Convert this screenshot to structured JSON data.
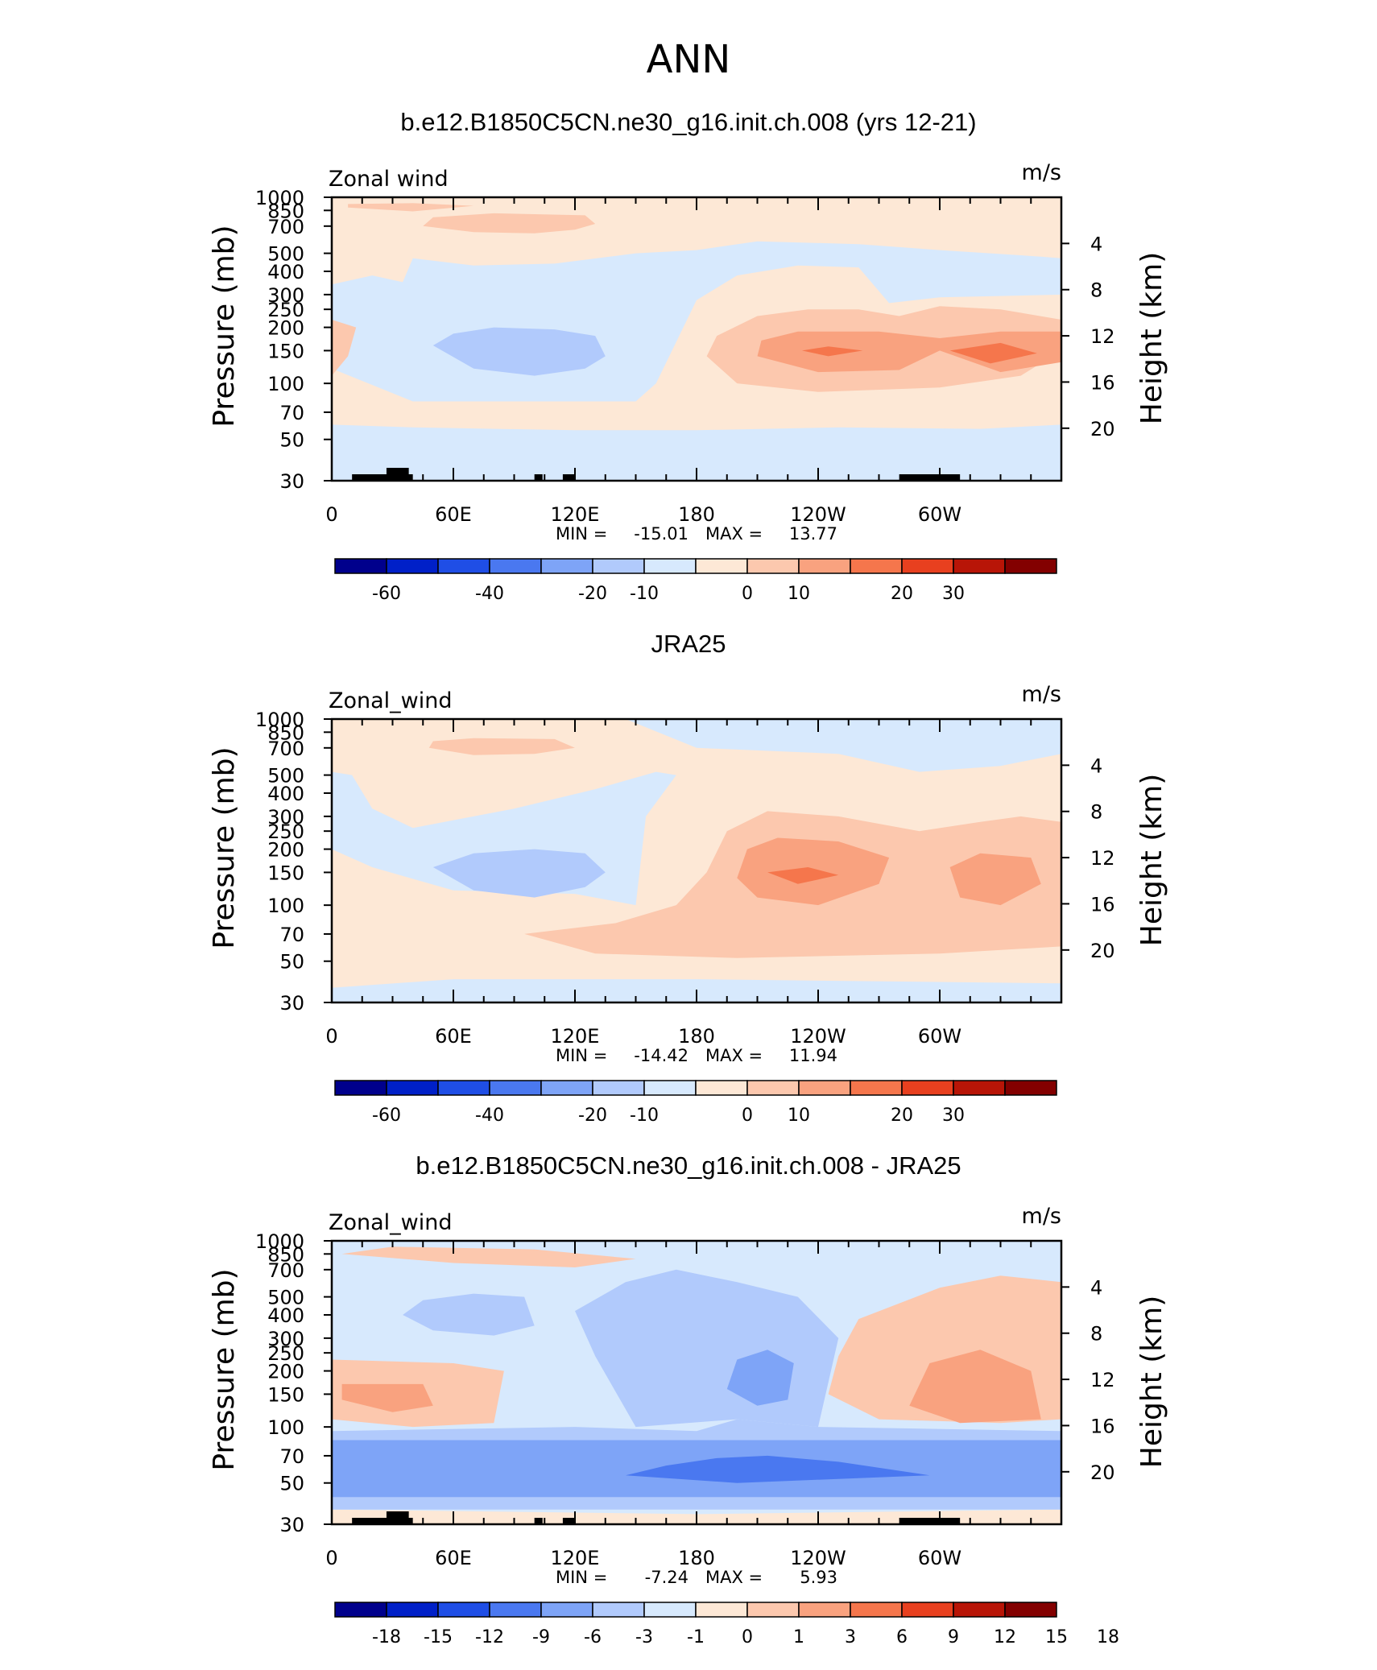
{
  "page_title": "ANN",
  "colors": {
    "frame": "#000000",
    "land": "#000000",
    "scale_12": [
      "#00008c",
      "#0020c8",
      "#1f4ee6",
      "#4a78f0",
      "#7ea4f7",
      "#b1cafc",
      "#d7e9fd",
      "#fde8d6",
      "#fcc8ae",
      "#f9a27f",
      "#f5764c",
      "#e8401f",
      "#b81507",
      "#830000"
    ],
    "scale_diff": [
      "#00008c",
      "#0020c8",
      "#1f4ee6",
      "#4a78f0",
      "#7ea4f7",
      "#b1cafc",
      "#d7e9fd",
      "#fde8d6",
      "#fcc8ae",
      "#f9a27f",
      "#f5764c",
      "#e8401f",
      "#b81507",
      "#830000"
    ]
  },
  "common": {
    "pressure_label": "Pressure (mb)",
    "height_label": "Height (km)",
    "pressure_ticks": [
      "30",
      "50",
      "70",
      "100",
      "150",
      "200",
      "250",
      "300",
      "400",
      "500",
      "700",
      "850",
      "1000"
    ],
    "height_ticks": [
      "20",
      "16",
      "12",
      "8",
      "4"
    ],
    "lon_ticks": [
      "0",
      "60E",
      "120E",
      "180",
      "120W",
      "60W"
    ],
    "units": "m/s"
  },
  "chart_data": [
    {
      "type": "heatmap",
      "title": "b.e12.B1850C5CN.ne30_g16.init.ch.008 (yrs 12-21)",
      "left_string": "Zonal wind",
      "right_string": "m/s",
      "xlabel": "",
      "ylabel": "Pressure (mb)",
      "y2label": "Height (km)",
      "x_range": [
        0,
        360
      ],
      "y_range_mb": [
        1000,
        30
      ],
      "y_scale": "log",
      "min_label": "MIN =",
      "min": "-15.01",
      "max_label": "MAX =",
      "max": "13.77",
      "contour_levels": [
        "-60",
        "-40",
        "-20",
        "-10",
        "0",
        "10",
        "20",
        "30"
      ],
      "regions": [
        {
          "shade": 6,
          "lon": 180,
          "p": 30,
          "note": "background near 0 m/s"
        },
        {
          "shade": 5,
          "lon_range": [
            60,
            135
          ],
          "p_range": [
            100,
            250
          ],
          "value_approx": -12
        },
        {
          "shade": 8,
          "lon_range": [
            185,
            360
          ],
          "p_range": [
            80,
            500
          ],
          "value_approx": 6
        },
        {
          "shade": 9,
          "lon_range": [
            200,
            350
          ],
          "p_range": [
            110,
            220
          ],
          "value_approx": 12
        },
        {
          "shade": 10,
          "lon_range": [
            235,
            250
          ],
          "p_range": [
            140,
            160
          ],
          "value_approx": 13
        }
      ]
    },
    {
      "type": "heatmap",
      "title": "JRA25",
      "left_string": "Zonal_wind",
      "right_string": "m/s",
      "xlabel": "",
      "ylabel": "Pressure (mb)",
      "y2label": "Height (km)",
      "x_range": [
        0,
        360
      ],
      "y_range_mb": [
        1000,
        30
      ],
      "y_scale": "log",
      "min_label": "MIN =",
      "min": "-14.42",
      "max_label": "MAX =",
      "max": "11.94",
      "contour_levels": [
        "-60",
        "-40",
        "-20",
        "-10",
        "0",
        "10",
        "20",
        "30"
      ],
      "regions": [
        {
          "shade": 5,
          "lon_range": [
            55,
            135
          ],
          "p_range": [
            100,
            250
          ],
          "value_approx": -12
        },
        {
          "shade": 8,
          "lon_range": [
            100,
            350
          ],
          "p_range": [
            50,
            300
          ],
          "value_approx": 5
        },
        {
          "shade": 9,
          "lon_range": [
            200,
            270
          ],
          "p_range": [
            100,
            200
          ],
          "value_approx": 10
        },
        {
          "shade": 10,
          "lon_range": [
            215,
            250
          ],
          "p_range": [
            130,
            170
          ],
          "value_approx": 12
        }
      ]
    },
    {
      "type": "heatmap",
      "title": "b.e12.B1850C5CN.ne30_g16.init.ch.008 - JRA25",
      "left_string": "Zonal_wind",
      "right_string": "m/s",
      "xlabel": "",
      "ylabel": "Pressure (mb)",
      "y2label": "Height (km)",
      "x_range": [
        0,
        360
      ],
      "y_range_mb": [
        1000,
        30
      ],
      "y_scale": "log",
      "min_label": "MIN =",
      "min": "-7.24",
      "max_label": "MAX =",
      "max": "5.93",
      "contour_levels": [
        "-18",
        "-15",
        "-12",
        "-9",
        "-6",
        "-3",
        "-1",
        "0",
        "1",
        "3",
        "6",
        "9",
        "12",
        "15",
        "18"
      ],
      "regions": [
        {
          "shade": 4,
          "lon_range": [
            0,
            360
          ],
          "p_range": [
            40,
            90
          ],
          "value_approx": -4
        },
        {
          "shade": 3,
          "lon_range": [
            145,
            295
          ],
          "p_range": [
            50,
            70
          ],
          "value_approx": -7
        },
        {
          "shade": 9,
          "lon_range": [
            0,
            50
          ],
          "p_range": [
            100,
            200
          ],
          "value_approx": 4
        },
        {
          "shade": 9,
          "lon_range": [
            285,
            360
          ],
          "p_range": [
            100,
            300
          ],
          "value_approx": 4
        },
        {
          "shade": 4,
          "lon_range": [
            195,
            225
          ],
          "p_range": [
            130,
            300
          ],
          "value_approx": -4
        }
      ]
    }
  ],
  "colorbars": [
    {
      "labels": [
        "-60",
        "-40",
        "-20",
        "-10",
        "0",
        "10",
        "20",
        "30"
      ]
    },
    {
      "labels": [
        "-60",
        "-40",
        "-20",
        "-10",
        "0",
        "10",
        "20",
        "30"
      ]
    },
    {
      "labels": [
        "-18",
        "-15",
        "-12",
        "-9",
        "-6",
        "-3",
        "-1",
        "0",
        "1",
        "3",
        "6",
        "9",
        "12",
        "15",
        "18"
      ]
    }
  ]
}
